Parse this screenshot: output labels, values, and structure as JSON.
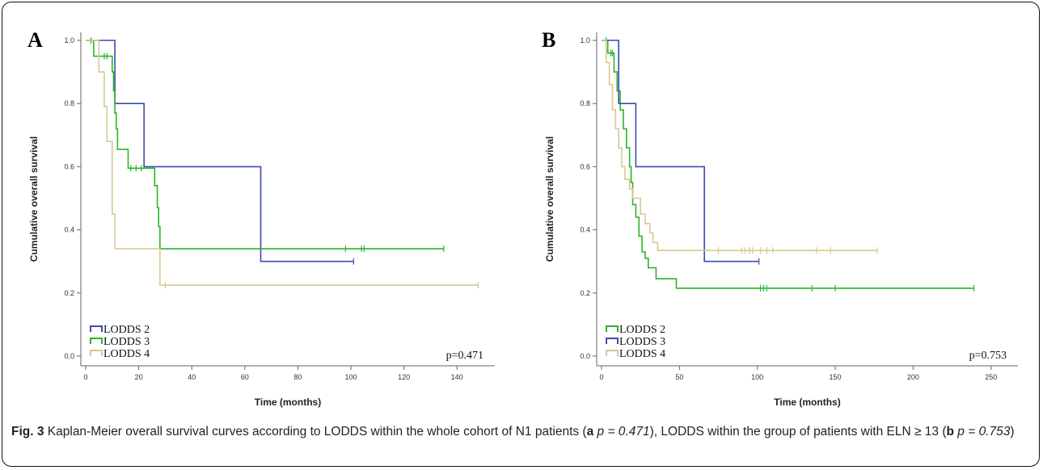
{
  "caption": {
    "label": "Fig. 3",
    "text": " Kaplan-Meier overall survival curves according to LODDS within the whole cohort of N1 patients (",
    "label_a": "a",
    "p_a": " p = 0.471",
    "text_mid": "), LODDS within the group of patients with ELN ≥ 13 (",
    "label_b": "b",
    "p_b": " p = 0.753",
    "text_end": ")"
  },
  "colors": {
    "lodds2_A": "#3a4bb0",
    "lodds3_A": "#2ab52a",
    "lodds4_A": "#d6c991",
    "lodds2_B": "#2ab52a",
    "lodds3_B": "#3a4bb0",
    "lodds4_B": "#d6c991"
  },
  "chart_data": [
    {
      "type": "line",
      "panel": "A",
      "xlabel": "Time (months)",
      "ylabel": "Cumulative overall survival",
      "xlim": [
        0,
        150
      ],
      "ylim": [
        0,
        1
      ],
      "xticks": [
        "0",
        "20",
        "40",
        "60",
        "80",
        "100",
        "120",
        "140"
      ],
      "yticks": [
        "0.0",
        "0.2",
        "0.4",
        "0.6",
        "0.8",
        "1.0"
      ],
      "p_value": "p=0.471",
      "legend": [
        "LODDS 2",
        "LODDS 3",
        "LODDS 4"
      ],
      "series": [
        {
          "name": "LODDS 2",
          "color_key": "lodds2_A",
          "steps": [
            [
              0,
              1
            ],
            [
              11,
              0.8
            ],
            [
              22,
              0.6
            ],
            [
              66,
              0.3
            ],
            [
              101,
              0.3
            ]
          ],
          "censored": [
            [
              101,
              0.3
            ]
          ]
        },
        {
          "name": "LODDS 3",
          "color_key": "lodds3_A",
          "steps": [
            [
              0,
              1
            ],
            [
              3,
              0.95
            ],
            [
              10,
              0.9
            ],
            [
              10.5,
              0.84
            ],
            [
              11,
              0.77
            ],
            [
              11.5,
              0.72
            ],
            [
              12,
              0.655
            ],
            [
              16,
              0.595
            ],
            [
              26,
              0.54
            ],
            [
              27,
              0.47
            ],
            [
              27.5,
              0.41
            ],
            [
              28,
              0.34
            ],
            [
              135,
              0.34
            ]
          ],
          "censored": [
            [
              2,
              1
            ],
            [
              7,
              0.95
            ],
            [
              8,
              0.95
            ],
            [
              17,
              0.595
            ],
            [
              19,
              0.595
            ],
            [
              21,
              0.595
            ],
            [
              98,
              0.34
            ],
            [
              104,
              0.34
            ],
            [
              105,
              0.34
            ],
            [
              135,
              0.34
            ]
          ]
        },
        {
          "name": "LODDS 4",
          "color_key": "lodds4_A",
          "steps": [
            [
              0,
              1
            ],
            [
              5,
              0.9
            ],
            [
              7,
              0.79
            ],
            [
              8,
              0.68
            ],
            [
              10,
              0.45
            ],
            [
              11,
              0.34
            ],
            [
              28,
              0.225
            ],
            [
              148,
              0.225
            ]
          ],
          "censored": [
            [
              30,
              0.225
            ],
            [
              148,
              0.225
            ]
          ]
        }
      ]
    },
    {
      "type": "line",
      "panel": "B",
      "xlabel": "Time (months)",
      "ylabel": "Cumulative overall survival",
      "xlim": [
        0,
        260
      ],
      "ylim": [
        0,
        1
      ],
      "xticks": [
        "0",
        "50",
        "100",
        "150",
        "200",
        "250"
      ],
      "yticks": [
        "0.0",
        "0.2",
        "0.4",
        "0.6",
        "0.8",
        "1.0"
      ],
      "p_value": "p=0.753",
      "legend": [
        "LODDS 2",
        "LODDS 3",
        "LODDS 4"
      ],
      "series": [
        {
          "name": "LODDS 2",
          "color_key": "lodds2_B",
          "steps": [
            [
              0,
              1
            ],
            [
              4,
              0.96
            ],
            [
              8,
              0.9
            ],
            [
              10,
              0.84
            ],
            [
              12,
              0.78
            ],
            [
              14,
              0.72
            ],
            [
              16,
              0.66
            ],
            [
              18,
              0.6
            ],
            [
              19,
              0.55
            ],
            [
              20,
              0.48
            ],
            [
              22,
              0.44
            ],
            [
              24,
              0.38
            ],
            [
              26,
              0.33
            ],
            [
              28,
              0.31
            ],
            [
              30,
              0.28
            ],
            [
              35,
              0.245
            ],
            [
              48,
              0.215
            ],
            [
              239,
              0.215
            ]
          ],
          "censored": [
            [
              3,
              1
            ],
            [
              6,
              0.96
            ],
            [
              7,
              0.96
            ],
            [
              102,
              0.215
            ],
            [
              104,
              0.215
            ],
            [
              106,
              0.215
            ],
            [
              135,
              0.215
            ],
            [
              150,
              0.215
            ],
            [
              239,
              0.215
            ]
          ]
        },
        {
          "name": "LODDS 3",
          "color_key": "lodds3_B",
          "steps": [
            [
              0,
              1
            ],
            [
              11,
              0.8
            ],
            [
              22,
              0.6
            ],
            [
              66,
              0.3
            ],
            [
              101,
              0.3
            ]
          ],
          "censored": [
            [
              101,
              0.3
            ]
          ]
        },
        {
          "name": "LODDS 4",
          "color_key": "lodds4_B",
          "steps": [
            [
              0,
              1
            ],
            [
              3,
              0.93
            ],
            [
              5,
              0.86
            ],
            [
              7,
              0.78
            ],
            [
              9,
              0.72
            ],
            [
              11,
              0.66
            ],
            [
              13,
              0.6
            ],
            [
              15,
              0.56
            ],
            [
              18,
              0.53
            ],
            [
              20,
              0.5
            ],
            [
              25,
              0.45
            ],
            [
              28,
              0.42
            ],
            [
              31,
              0.39
            ],
            [
              33,
              0.36
            ],
            [
              36,
              0.335
            ],
            [
              177,
              0.335
            ]
          ],
          "censored": [
            [
              75,
              0.335
            ],
            [
              90,
              0.335
            ],
            [
              92,
              0.335
            ],
            [
              95,
              0.335
            ],
            [
              97,
              0.335
            ],
            [
              102,
              0.335
            ],
            [
              106,
              0.335
            ],
            [
              110,
              0.335
            ],
            [
              138,
              0.335
            ],
            [
              147,
              0.335
            ],
            [
              177,
              0.335
            ]
          ]
        }
      ]
    }
  ]
}
